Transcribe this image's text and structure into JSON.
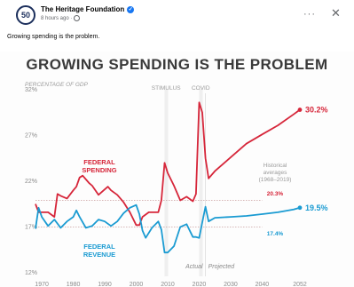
{
  "post": {
    "avatar_text": "50",
    "page_name": "The Heritage Foundation",
    "time": "8 hours ago ·",
    "text": "Growing spending is the problem.",
    "more_label": "···",
    "close_label": "✕"
  },
  "colors": {
    "spending": "#d6263a",
    "revenue": "#1a9bd2",
    "dotted": "#c9a0a0",
    "axis_text": "#8a8a8a"
  },
  "chart_data": {
    "type": "line",
    "title": "GROWING SPENDING IS THE PROBLEM",
    "ylabel": "PERCENTAGE OF GDP",
    "ylim": [
      12,
      32
    ],
    "yticks": [
      "32%",
      "27%",
      "22%",
      "17%",
      "12%"
    ],
    "ytick_values": [
      32,
      27,
      22,
      17,
      12
    ],
    "xlim": [
      1968,
      2052
    ],
    "xticks": [
      "1970",
      "1980",
      "1990",
      "2000",
      "2010",
      "2020",
      "2030",
      "2040",
      "2052"
    ],
    "xtick_values": [
      1970,
      1980,
      1990,
      2000,
      2010,
      2020,
      2030,
      2040,
      2052
    ],
    "series": [
      {
        "name": "FEDERAL SPENDING",
        "x": [
          1968,
          1969,
          1970,
          1972,
          1974,
          1975,
          1976,
          1978,
          1980,
          1981,
          1982,
          1983,
          1985,
          1986,
          1988,
          1990,
          1991,
          1992,
          1994,
          1996,
          1998,
          2000,
          2001,
          2002,
          2004,
          2007,
          2008,
          2009,
          2010,
          2012,
          2014,
          2016,
          2018,
          2019,
          2020,
          2021,
          2022,
          2023,
          2025,
          2030,
          2035,
          2040,
          2045,
          2050,
          2052
        ],
        "y": [
          19.9,
          19.0,
          19.0,
          19.0,
          18.5,
          21.0,
          20.8,
          20.5,
          21.4,
          21.8,
          22.8,
          23.0,
          22.2,
          21.9,
          20.9,
          21.5,
          21.8,
          21.4,
          20.9,
          20.1,
          19.0,
          17.6,
          17.6,
          18.5,
          19.0,
          19.0,
          20.3,
          24.4,
          23.3,
          21.9,
          20.3,
          20.7,
          20.2,
          21.0,
          31.0,
          29.9,
          24.9,
          22.7,
          23.5,
          25.0,
          26.5,
          27.5,
          28.5,
          29.7,
          30.2
        ]
      },
      {
        "name": "FEDERAL REVENUE",
        "x": [
          1968,
          1969,
          1970,
          1972,
          1974,
          1976,
          1978,
          1980,
          1981,
          1982,
          1984,
          1986,
          1988,
          1990,
          1992,
          1994,
          1996,
          1998,
          2000,
          2001,
          2002,
          2003,
          2005,
          2007,
          2008,
          2009,
          2010,
          2012,
          2014,
          2016,
          2018,
          2019,
          2020,
          2021,
          2022,
          2023,
          2025,
          2030,
          2035,
          2040,
          2045,
          2050,
          2052
        ],
        "y": [
          17.2,
          19.5,
          18.5,
          17.5,
          18.2,
          17.3,
          18.0,
          18.5,
          19.2,
          18.5,
          17.3,
          17.5,
          18.2,
          18.0,
          17.5,
          18.0,
          18.9,
          19.5,
          19.8,
          18.8,
          17.0,
          16.2,
          17.3,
          18.0,
          17.1,
          14.6,
          14.6,
          15.3,
          17.4,
          17.7,
          16.3,
          16.3,
          16.2,
          17.9,
          19.6,
          18.0,
          18.4,
          18.5,
          18.6,
          18.8,
          19.0,
          19.3,
          19.5
        ]
      }
    ],
    "series_labels": [
      "FEDERAL\nSPENDING",
      "FEDERAL\nREVENUE"
    ],
    "end_labels": [
      "30.2%",
      "19.5%"
    ],
    "averages": {
      "title": "Historical\naverages\n(1968–2019)",
      "spending": 20.3,
      "spending_label": "20.3%",
      "revenue": 17.4,
      "revenue_label": "17.4%"
    },
    "shaded_periods": [
      {
        "label": "STIMULUS",
        "from": 2009,
        "to": 2010
      },
      {
        "label": "COVID",
        "from": 2020,
        "to": 2021
      }
    ],
    "annotations": {
      "actual": "Actual",
      "projected": "Projected"
    },
    "divider_year": 2022
  }
}
